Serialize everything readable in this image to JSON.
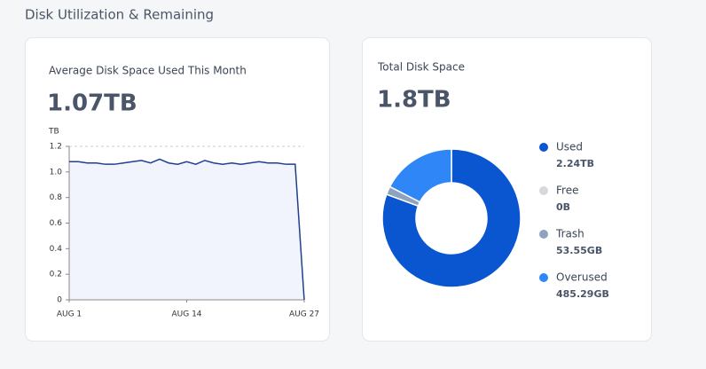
{
  "section_title": "Disk Utilization & Remaining",
  "chart_data": [
    {
      "type": "line",
      "title": "Average Disk Space Used This Month",
      "headline": "1.07TB",
      "y_label": "TB",
      "x": [
        1,
        2,
        3,
        4,
        5,
        6,
        7,
        8,
        9,
        10,
        11,
        12,
        13,
        14,
        15,
        16,
        17,
        18,
        19,
        20,
        21,
        22,
        23,
        24,
        25,
        26,
        27
      ],
      "values": [
        1.08,
        1.08,
        1.07,
        1.07,
        1.06,
        1.06,
        1.07,
        1.08,
        1.09,
        1.07,
        1.1,
        1.07,
        1.06,
        1.08,
        1.06,
        1.09,
        1.07,
        1.06,
        1.07,
        1.06,
        1.07,
        1.08,
        1.07,
        1.07,
        1.06,
        1.06,
        0
      ],
      "color": "#1f3f8f",
      "fill": "#f1f4fd",
      "xlim": [
        1,
        27
      ],
      "xticks": [
        {
          "value": 1,
          "label": "AUG 1"
        },
        {
          "value": 14,
          "label": "AUG 14"
        },
        {
          "value": 27,
          "label": "AUG 27"
        }
      ],
      "ylim": [
        0,
        1.2
      ],
      "yticks": [
        0,
        0.2,
        0.4,
        0.6,
        0.8,
        {
          "value": 1,
          "label": "1.0"
        },
        1.2
      ]
    },
    {
      "type": "donut",
      "title": "Total Disk Space",
      "headline": "1.8TB",
      "categories": [
        "Used",
        "Free",
        "Trash",
        "Overused"
      ],
      "values": [
        2240,
        0,
        53.55,
        485.29
      ],
      "value_labels": [
        "2.24TB",
        "0B",
        "53.55GB",
        "485.29GB"
      ],
      "colors": [
        "#0a55d0",
        "#d6d8db",
        "#8fa3bf",
        "#2f86f6"
      ]
    }
  ]
}
